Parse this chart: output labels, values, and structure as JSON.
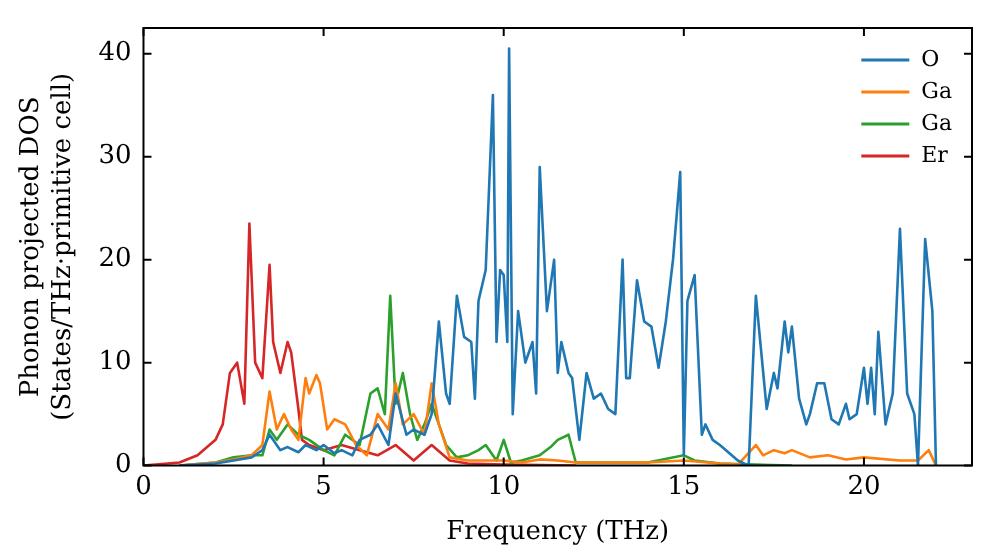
{
  "chart_data": {
    "type": "line",
    "xlabel": "Frequency (THz)",
    "ylabel": "Phonon projected DOS\n(States/THz·primitive cell)",
    "xlim": [
      0,
      23
    ],
    "ylim": [
      0,
      42.5
    ],
    "xticks": [
      0,
      5,
      10,
      15,
      20
    ],
    "yticks": [
      0,
      10,
      20,
      30,
      40
    ],
    "grid": false,
    "legend": "top right",
    "marker": "none",
    "line_style": "solid",
    "series": [
      {
        "name": "O",
        "color": "#1f77b4",
        "x": [
          1,
          2,
          2.5,
          3,
          3.3,
          3.5,
          3.8,
          4,
          4.3,
          4.5,
          4.8,
          5,
          5.3,
          5.5,
          5.8,
          6,
          6.3,
          6.5,
          6.8,
          7,
          7.3,
          7.5,
          7.8,
          8,
          8.2,
          8.4,
          8.5,
          8.7,
          8.9,
          9.1,
          9.2,
          9.3,
          9.5,
          9.7,
          9.8,
          9.9,
          10,
          10.1,
          10.15,
          10.25,
          10.4,
          10.6,
          10.8,
          10.9,
          11,
          11.2,
          11.4,
          11.5,
          11.6,
          11.8,
          11.9,
          12.1,
          12.3,
          12.5,
          12.7,
          12.9,
          13.1,
          13.3,
          13.4,
          13.5,
          13.7,
          13.9,
          14.1,
          14.3,
          14.5,
          14.7,
          14.9,
          15,
          15.1,
          15.3,
          15.5,
          15.6,
          15.8,
          16,
          16.5,
          16.8,
          17,
          17.3,
          17.5,
          17.6,
          17.8,
          17.9,
          18,
          18.2,
          18.4,
          18.5,
          18.7,
          18.9,
          19.1,
          19.3,
          19.5,
          19.6,
          19.8,
          20,
          20.1,
          20.2,
          20.3,
          20.4,
          20.6,
          20.8,
          21,
          21.2,
          21.4,
          21.5,
          21.7,
          21.9,
          22
        ],
        "values": [
          0,
          0.2,
          0.5,
          0.8,
          1.5,
          3,
          1.5,
          1.8,
          1.3,
          2,
          1.5,
          2,
          1.2,
          1.5,
          1,
          2.5,
          3,
          4,
          2,
          7,
          3,
          3.5,
          3,
          5,
          14,
          7,
          6,
          16.5,
          12.5,
          12,
          6.5,
          16,
          19,
          36,
          12,
          19,
          18.5,
          12,
          40.5,
          5,
          15,
          10,
          12,
          7,
          29,
          15,
          20,
          9,
          12,
          9,
          8.5,
          2.5,
          9,
          6.5,
          7,
          5.5,
          5,
          20,
          8.5,
          8.5,
          18,
          14,
          13.5,
          9.5,
          14,
          20,
          28.5,
          1,
          16,
          18.5,
          3,
          4,
          2.5,
          2,
          0.5,
          0,
          16.5,
          5.5,
          9,
          7.5,
          14,
          11,
          13.5,
          6.5,
          4,
          5,
          8,
          8,
          4.5,
          4,
          6,
          4.5,
          5,
          9.5,
          6,
          9.5,
          5,
          13,
          4,
          7,
          23,
          7,
          5,
          0,
          22,
          15,
          0
        ]
      },
      {
        "name": "Ga",
        "color": "#ff7f0e",
        "x": [
          1,
          2,
          2.5,
          3,
          3.3,
          3.5,
          3.7,
          3.9,
          4.1,
          4.3,
          4.5,
          4.6,
          4.8,
          4.9,
          5.1,
          5.3,
          5.6,
          5.9,
          6.2,
          6.5,
          6.8,
          7,
          7.2,
          7.5,
          7.8,
          8,
          8.2,
          8.5,
          9,
          9.5,
          10,
          10.5,
          11,
          11.5,
          12,
          13,
          14,
          15,
          16,
          16.5,
          17,
          17.2,
          17.5,
          17.8,
          18,
          18.5,
          19,
          19.5,
          20,
          21,
          21.5,
          21.8,
          22
        ],
        "values": [
          0,
          0.3,
          0.6,
          1,
          2,
          7.2,
          3.5,
          5,
          3.5,
          2.5,
          8.5,
          7,
          8.8,
          8,
          3.5,
          4.5,
          4,
          2,
          1,
          5,
          3.5,
          8,
          4,
          5,
          3,
          8,
          4,
          0.8,
          0.5,
          0.5,
          0.5,
          0.3,
          0.6,
          0.5,
          0.3,
          0.3,
          0.3,
          0.5,
          0.2,
          0.1,
          2,
          1,
          1.5,
          1.2,
          1.5,
          0.8,
          1,
          0.6,
          0.8,
          0.5,
          0.5,
          1.5,
          0
        ]
      },
      {
        "name": "Ga",
        "color": "#2ca02c",
        "x": [
          1,
          2,
          2.5,
          3,
          3.3,
          3.5,
          3.7,
          4,
          4.3,
          4.6,
          5,
          5.3,
          5.6,
          6,
          6.3,
          6.5,
          6.7,
          6.85,
          7,
          7.2,
          7.4,
          7.6,
          7.8,
          8,
          8.2,
          8.4,
          8.7,
          9,
          9.3,
          9.5,
          9.8,
          10,
          10.2,
          10.5,
          11,
          11.3,
          11.5,
          11.8,
          12,
          13,
          14,
          15,
          15.3,
          16,
          18
        ],
        "values": [
          0,
          0.3,
          0.8,
          1,
          1,
          3.5,
          2.5,
          4,
          3,
          2.5,
          1.5,
          1,
          3,
          2,
          7,
          7.5,
          5,
          16.5,
          6,
          9,
          5,
          2.5,
          4,
          6,
          4,
          2,
          0.8,
          1,
          1.5,
          2,
          0.5,
          2.5,
          0.3,
          0.5,
          1,
          1.8,
          2.5,
          3,
          0.3,
          0.3,
          0.3,
          1,
          0.5,
          0.2,
          0
        ]
      },
      {
        "name": "Er",
        "color": "#d62728",
        "x": [
          0,
          1,
          1.5,
          2,
          2.2,
          2.4,
          2.6,
          2.8,
          2.94,
          3.1,
          3.3,
          3.5,
          3.6,
          3.8,
          4,
          4.1,
          4.3,
          4.4,
          4.6,
          5,
          5.5,
          6,
          6.5,
          7,
          7.5,
          8,
          8.5,
          9,
          10,
          12
        ],
        "values": [
          0,
          0.3,
          1,
          2.5,
          4,
          9,
          10,
          6,
          23.5,
          10,
          8.5,
          19.5,
          12,
          9,
          12,
          11,
          5.5,
          2.5,
          2,
          1.5,
          2,
          1.5,
          1,
          2,
          0.5,
          2,
          0.5,
          0.2,
          0.1,
          0
        ]
      }
    ]
  }
}
